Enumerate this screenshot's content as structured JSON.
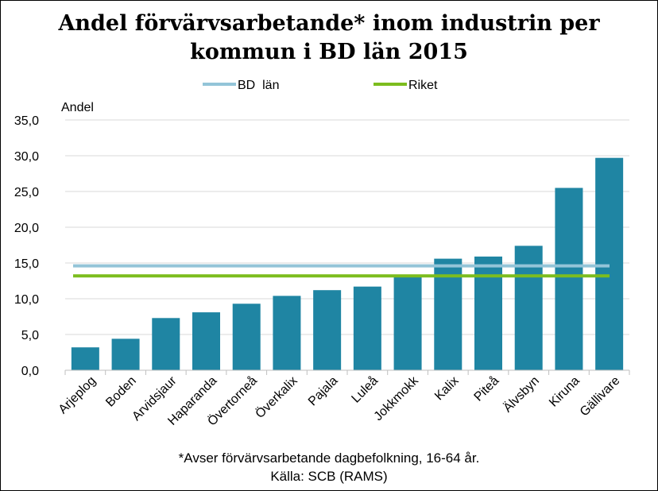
{
  "chart_data": {
    "type": "bar",
    "title_lines": [
      "Andel förvärvsarbetande* inom industrin per",
      "kommun i BD län 2015"
    ],
    "ylabel": "Andel",
    "xlabel": "",
    "ylim": [
      0,
      35
    ],
    "yticks": [
      0,
      5,
      10,
      15,
      20,
      25,
      30,
      35
    ],
    "ytick_labels": [
      "0,0",
      "5,0",
      "10,0",
      "15,0",
      "20,0",
      "25,0",
      "30,0",
      "35,0"
    ],
    "grid": true,
    "categories": [
      "Arjeplog",
      "Boden",
      "Arvidsjaur",
      "Haparanda",
      "Övertorneå",
      "Överkalix",
      "Pajala",
      "Luleå",
      "Jokkmokk",
      "Kalix",
      "Piteå",
      "Älvsbyn",
      "Kiruna",
      "Gällivare"
    ],
    "values": [
      3.2,
      4.4,
      7.3,
      8.1,
      9.3,
      10.4,
      11.2,
      11.7,
      13.2,
      15.6,
      15.9,
      17.4,
      25.5,
      29.7
    ],
    "bar_color": "#1f85a3",
    "reference_lines": [
      {
        "name": "BD  län",
        "value": 14.6,
        "color": "#93c4d8"
      },
      {
        "name": "Riket",
        "value": 13.2,
        "color": "#7cbd1e"
      }
    ],
    "legend_position": "top",
    "footnote": "*Avser förvärvsarbetande dagbefolkning,  16-64 år.",
    "source": "Källa: SCB (RAMS)"
  }
}
